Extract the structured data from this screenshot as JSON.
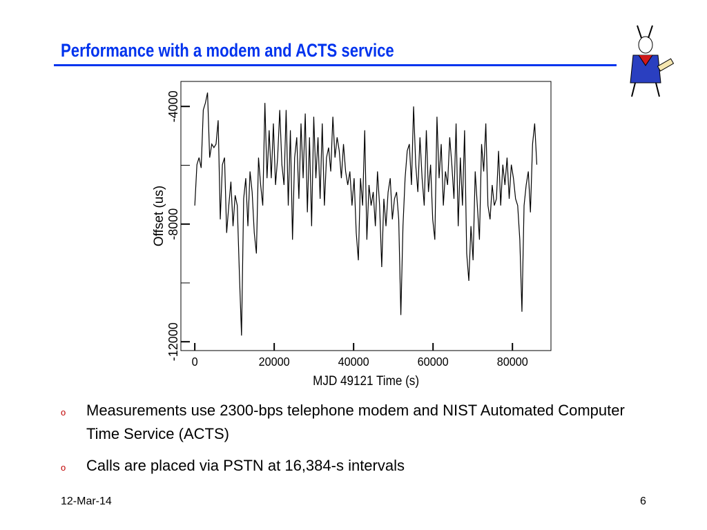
{
  "title": "Performance with a modem and ACTS service",
  "bullets": [
    "Measurements use 2300-bps telephone modem and NIST Automated Computer Time Service (ACTS)",
    "Calls are placed via PSTN at 16,384-s intervals"
  ],
  "footer": {
    "date": "12-Mar-14",
    "page": "6"
  },
  "chart_data": {
    "type": "line",
    "x_label": "MJD 49121 Time (s)",
    "y_label": "Offset (us)",
    "xlim": [
      -3500,
      89700
    ],
    "xticks": [
      0,
      20000,
      40000,
      60000,
      80000
    ],
    "ylim": [
      -12300,
      -3150
    ],
    "yticks": [
      -4000,
      -8000,
      -12000
    ],
    "yminorticks": [
      -6000,
      -10000
    ],
    "color": "#000000",
    "x": [
      0,
      535,
      1070,
      1605,
      2140,
      2675,
      3210,
      3745,
      4280,
      4815,
      5350,
      5885,
      6420,
      6955,
      7490,
      8025,
      8560,
      9095,
      9630,
      10165,
      10700,
      11235,
      11770,
      12305,
      12840,
      13375,
      13910,
      14445,
      14980,
      15515,
      16050,
      16585,
      17120,
      17655,
      18190,
      18725,
      19260,
      19795,
      20330,
      20865,
      21400,
      21935,
      22470,
      23005,
      23540,
      24075,
      24610,
      25145,
      25680,
      26215,
      26750,
      27285,
      27820,
      28355,
      28890,
      29425,
      29960,
      30495,
      31030,
      31565,
      32100,
      32635,
      33170,
      33705,
      34240,
      34775,
      35310,
      35845,
      36380,
      36915,
      37450,
      37985,
      38520,
      39055,
      39590,
      40125,
      40660,
      41195,
      41730,
      42265,
      42800,
      43335,
      43870,
      44405,
      44940,
      45475,
      46010,
      46545,
      47080,
      47615,
      48150,
      48685,
      49220,
      49755,
      50290,
      50825,
      51360,
      51895,
      52430,
      52965,
      53500,
      54035,
      54570,
      55105,
      55640,
      56175,
      56710,
      57245,
      57780,
      58315,
      58850,
      59385,
      59920,
      60455,
      60990,
      61525,
      62060,
      62595,
      63130,
      63665,
      64200,
      64735,
      65270,
      65805,
      66340,
      66875,
      67410,
      67945,
      68480,
      69015,
      69550,
      70085,
      70620,
      71155,
      71690,
      72225,
      72760,
      73295,
      73830,
      74365,
      74900,
      75435,
      75970,
      76505,
      77040,
      77575,
      78110,
      78645,
      79180,
      79715,
      80250,
      80785,
      81320,
      81855,
      82390,
      82925,
      83460,
      83995,
      84530,
      85065,
      85600,
      86135
    ],
    "values": [
      -7370,
      -5980,
      -5740,
      -6090,
      -4120,
      -3880,
      -3530,
      -5740,
      -5280,
      -5400,
      -5280,
      -4470,
      -7840,
      -5980,
      -5740,
      -8300,
      -7370,
      -6560,
      -8070,
      -7020,
      -7370,
      -9700,
      -11790,
      -7140,
      -6440,
      -8070,
      -6210,
      -6910,
      -8300,
      -9000,
      -5740,
      -6670,
      -7370,
      -3880,
      -6440,
      -4810,
      -6440,
      -4580,
      -6670,
      -5740,
      -4120,
      -5980,
      -6670,
      -4120,
      -7370,
      -4810,
      -8530,
      -5740,
      -5050,
      -7140,
      -4580,
      -6440,
      -4240,
      -7600,
      -5050,
      -8070,
      -4350,
      -6440,
      -5050,
      -7140,
      -4580,
      -7370,
      -5740,
      -5400,
      -6210,
      -4350,
      -5740,
      -5050,
      -5510,
      -6440,
      -5280,
      -6210,
      -6670,
      -6210,
      -7370,
      -6440,
      -8300,
      -9230,
      -6440,
      -7370,
      -4810,
      -8530,
      -6670,
      -7370,
      -6910,
      -8070,
      -6210,
      -7370,
      -9460,
      -7140,
      -8070,
      -6910,
      -6440,
      -7840,
      -7140,
      -6910,
      -7840,
      -11090,
      -8070,
      -6440,
      -5510,
      -5280,
      -6670,
      -4000,
      -5980,
      -6910,
      -5050,
      -6440,
      -7370,
      -4810,
      -6910,
      -5980,
      -7840,
      -8530,
      -4350,
      -6440,
      -5280,
      -7370,
      -6210,
      -6670,
      -5050,
      -5980,
      -7140,
      -4580,
      -8070,
      -5740,
      -7370,
      -4810,
      -9000,
      -9930,
      -8070,
      -9230,
      -6210,
      -7370,
      -8530,
      -5280,
      -6210,
      -4580,
      -7370,
      -7840,
      -6670,
      -7370,
      -7140,
      -5510,
      -7370,
      -5980,
      -6670,
      -5740,
      -7140,
      -5980,
      -6440,
      -7140,
      -7370,
      -8530,
      -10980,
      -7370,
      -6670,
      -6210,
      -7600,
      -5280,
      -4580,
      -5980
    ]
  }
}
